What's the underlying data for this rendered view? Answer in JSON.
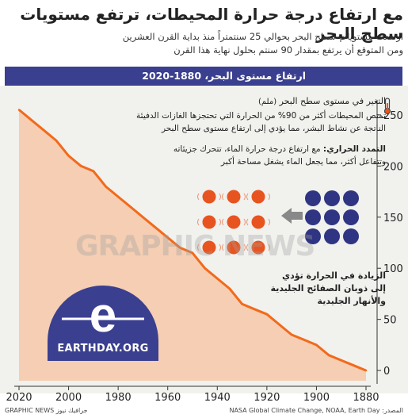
{
  "header": {
    "title": "مع ارتفاع درجة حرارة المحيطات، ترتفع مستويات سطح البحر",
    "subtitle_line1": "ارتفعت مستويات سطح البحر بحوالي 25 سنتمتراً منذ بداية القرن العشرين",
    "subtitle_line2": "ومن المتوقع أن يرتفع بمقدار 90 سنتم بحلول نهاية هذا القرن",
    "bar_title": "ارتفاع مستوى البحر، 1880-2020"
  },
  "annotations": {
    "axis_label": "التغير في مستوى سطح البحر",
    "axis_unit": "(ملم)",
    "heat_line1": "تمتص المحيطات أكثر من 90% من الحرارة التي تحتجزها الغازات الدفيئة",
    "heat_line2": "الناتجة عن نشاط البشر، مما يؤدي إلى ارتفاع مستوى سطح البحر",
    "thermal_title": "التمدد الحراري:",
    "thermal_line1": " مع ارتفاع درجة حرارة الماء، تتحرك جزيئاته",
    "thermal_line2": "وتتفاعل أكثر، مما يجعل الماء يشغل مساحة أكبر",
    "ice_line1": "الزيادة في الحرارة تؤدي",
    "ice_line2": "إلى ذوبان الصفائح الجليدية",
    "ice_line3": "والأنهار الجليدية"
  },
  "logo": {
    "text": "EARTHDAY.ORG"
  },
  "watermark": "GRAPHIC NEWS",
  "footer": {
    "credit": "جرافيك نيوز GRAPHIC NEWS",
    "source": "المصدر: NASA Global Climate Change, NOAA, Earth Day"
  },
  "colors": {
    "line": "#f26a1b",
    "area": "#f8b183",
    "bar": "#3a3f8f",
    "hot_molecule": "#e8541f",
    "cold_molecule": "#2f3582",
    "arrow": "#888888",
    "logo_dome": "#3a3f8f"
  },
  "icons": [
    "thermometer-icon",
    "earthday-logo",
    "arrow-left-icon"
  ],
  "chart_data": {
    "type": "area",
    "x_reversed": true,
    "xlim": [
      2020,
      1880
    ],
    "ylim": [
      -10,
      260
    ],
    "x_ticks": [
      2020,
      2000,
      1980,
      1960,
      1940,
      1920,
      1900,
      1880
    ],
    "y_ticks": [
      0,
      50,
      100,
      150,
      200,
      250
    ],
    "y_axis_side": "right",
    "grid": false,
    "x": [
      1880,
      1885,
      1890,
      1895,
      1900,
      1905,
      1910,
      1915,
      1920,
      1925,
      1930,
      1935,
      1940,
      1945,
      1950,
      1955,
      1960,
      1965,
      1970,
      1975,
      1980,
      1985,
      1990,
      1995,
      2000,
      2005,
      2010,
      2015,
      2020
    ],
    "y": [
      0,
      5,
      10,
      15,
      25,
      30,
      35,
      45,
      55,
      60,
      65,
      80,
      90,
      100,
      115,
      120,
      130,
      140,
      150,
      160,
      170,
      180,
      195,
      200,
      210,
      225,
      235,
      245,
      255
    ]
  }
}
